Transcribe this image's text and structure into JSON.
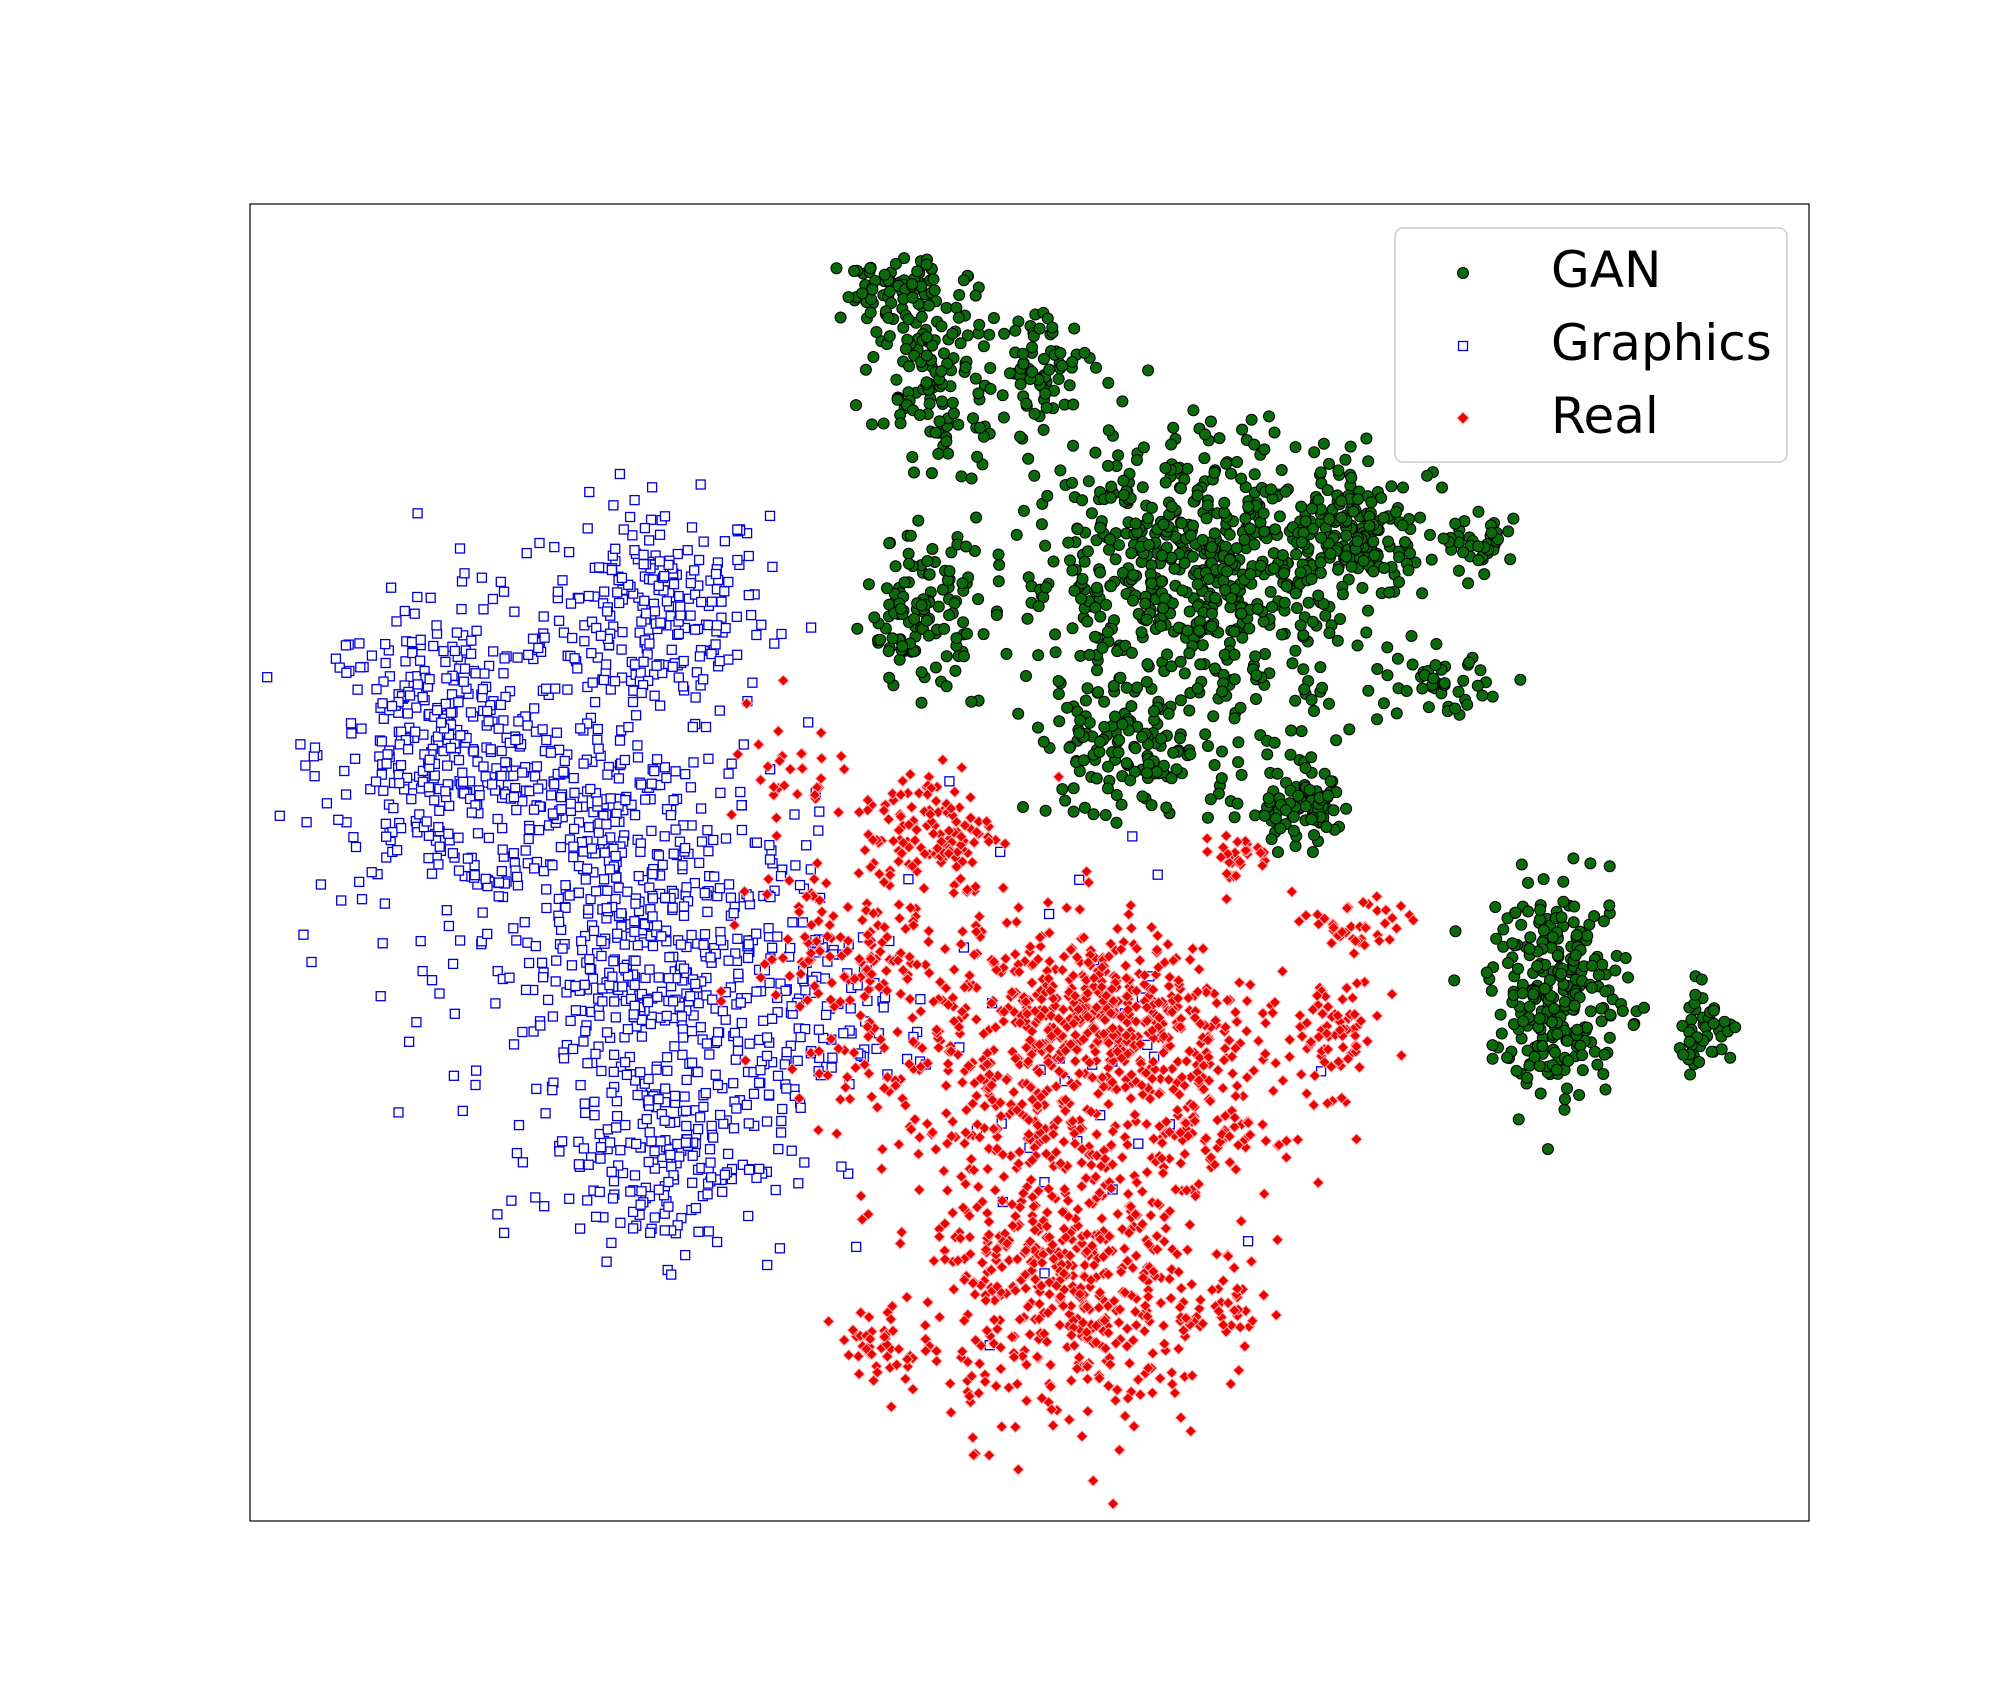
{
  "chart_data": {
    "type": "scatter",
    "title": "",
    "xlabel": "",
    "ylabel": "",
    "xlim": [
      0,
      100
    ],
    "ylim": [
      0,
      100
    ],
    "ticks_shown": false,
    "grid": false,
    "legend_position": "top-right",
    "colors": {
      "GAN": {
        "fill": "#0b6b0b",
        "edge": "#000000"
      },
      "Graphics": {
        "fill": "#ffffff",
        "edge": "#0000dd"
      },
      "Real": {
        "fill": "#ee0000",
        "edge": "#ffb0b0"
      }
    },
    "series": [
      {
        "name": "GAN",
        "marker": "circle",
        "clusters": [
          {
            "cx": 41.0,
            "cy": 93.5,
            "sx": 1.6,
            "sy": 1.2,
            "n": 70
          },
          {
            "cx": 44.5,
            "cy": 87.0,
            "sx": 2.2,
            "sy": 3.4,
            "n": 140
          },
          {
            "cx": 51.0,
            "cy": 87.5,
            "sx": 1.2,
            "sy": 2.2,
            "n": 60
          },
          {
            "cx": 61.0,
            "cy": 72.0,
            "sx": 6.0,
            "sy": 5.5,
            "n": 700
          },
          {
            "cx": 71.0,
            "cy": 75.0,
            "sx": 2.2,
            "sy": 2.0,
            "n": 130
          },
          {
            "cx": 79.0,
            "cy": 74.0,
            "sx": 1.1,
            "sy": 1.0,
            "n": 40
          },
          {
            "cx": 43.0,
            "cy": 69.0,
            "sx": 1.8,
            "sy": 2.8,
            "n": 120
          },
          {
            "cx": 76.5,
            "cy": 63.5,
            "sx": 1.4,
            "sy": 1.1,
            "n": 40
          },
          {
            "cx": 67.5,
            "cy": 54.0,
            "sx": 1.8,
            "sy": 1.6,
            "n": 90
          },
          {
            "cx": 56.0,
            "cy": 58.0,
            "sx": 3.0,
            "sy": 2.2,
            "n": 120
          },
          {
            "cx": 84.0,
            "cy": 40.0,
            "sx": 2.2,
            "sy": 4.0,
            "n": 260
          },
          {
            "cx": 93.2,
            "cy": 37.5,
            "sx": 1.0,
            "sy": 1.5,
            "n": 45
          }
        ]
      },
      {
        "name": "Graphics",
        "marker": "square",
        "clusters": [
          {
            "cx": 26.0,
            "cy": 69.0,
            "sx": 3.6,
            "sy": 4.2,
            "n": 260
          },
          {
            "cx": 12.5,
            "cy": 58.5,
            "sx": 4.0,
            "sy": 5.5,
            "n": 380
          },
          {
            "cx": 22.0,
            "cy": 54.0,
            "sx": 4.0,
            "sy": 3.5,
            "n": 180
          },
          {
            "cx": 26.5,
            "cy": 41.5,
            "sx": 6.0,
            "sy": 6.0,
            "n": 500
          },
          {
            "cx": 26.5,
            "cy": 28.0,
            "sx": 4.0,
            "sy": 4.0,
            "n": 200
          },
          {
            "cx": 36.0,
            "cy": 38.0,
            "sx": 2.5,
            "sy": 3.0,
            "n": 60
          },
          {
            "cx": 52.0,
            "cy": 35.0,
            "sx": 8.0,
            "sy": 10.0,
            "n": 40
          }
        ]
      },
      {
        "name": "Real",
        "marker": "diamond",
        "clusters": [
          {
            "cx": 43.5,
            "cy": 52.5,
            "sx": 2.2,
            "sy": 2.5,
            "n": 130
          },
          {
            "cx": 55.5,
            "cy": 38.5,
            "sx": 4.5,
            "sy": 3.2,
            "n": 330
          },
          {
            "cx": 49.5,
            "cy": 35.0,
            "sx": 6.5,
            "sy": 6.0,
            "n": 450
          },
          {
            "cx": 52.5,
            "cy": 18.0,
            "sx": 4.5,
            "sy": 5.5,
            "n": 500
          },
          {
            "cx": 61.5,
            "cy": 30.0,
            "sx": 2.2,
            "sy": 2.5,
            "n": 90
          },
          {
            "cx": 69.5,
            "cy": 37.0,
            "sx": 1.6,
            "sy": 2.2,
            "n": 70
          },
          {
            "cx": 71.0,
            "cy": 45.0,
            "sx": 1.6,
            "sy": 1.2,
            "n": 40
          },
          {
            "cx": 63.5,
            "cy": 50.5,
            "sx": 1.3,
            "sy": 0.9,
            "n": 30
          },
          {
            "cx": 38.5,
            "cy": 43.0,
            "sx": 3.0,
            "sy": 3.0,
            "n": 100
          },
          {
            "cx": 34.0,
            "cy": 56.0,
            "sx": 2.0,
            "sy": 3.0,
            "n": 30
          },
          {
            "cx": 62.5,
            "cy": 16.0,
            "sx": 1.3,
            "sy": 1.5,
            "n": 30
          },
          {
            "cx": 40.5,
            "cy": 13.0,
            "sx": 1.5,
            "sy": 1.8,
            "n": 45
          }
        ]
      }
    ]
  }
}
